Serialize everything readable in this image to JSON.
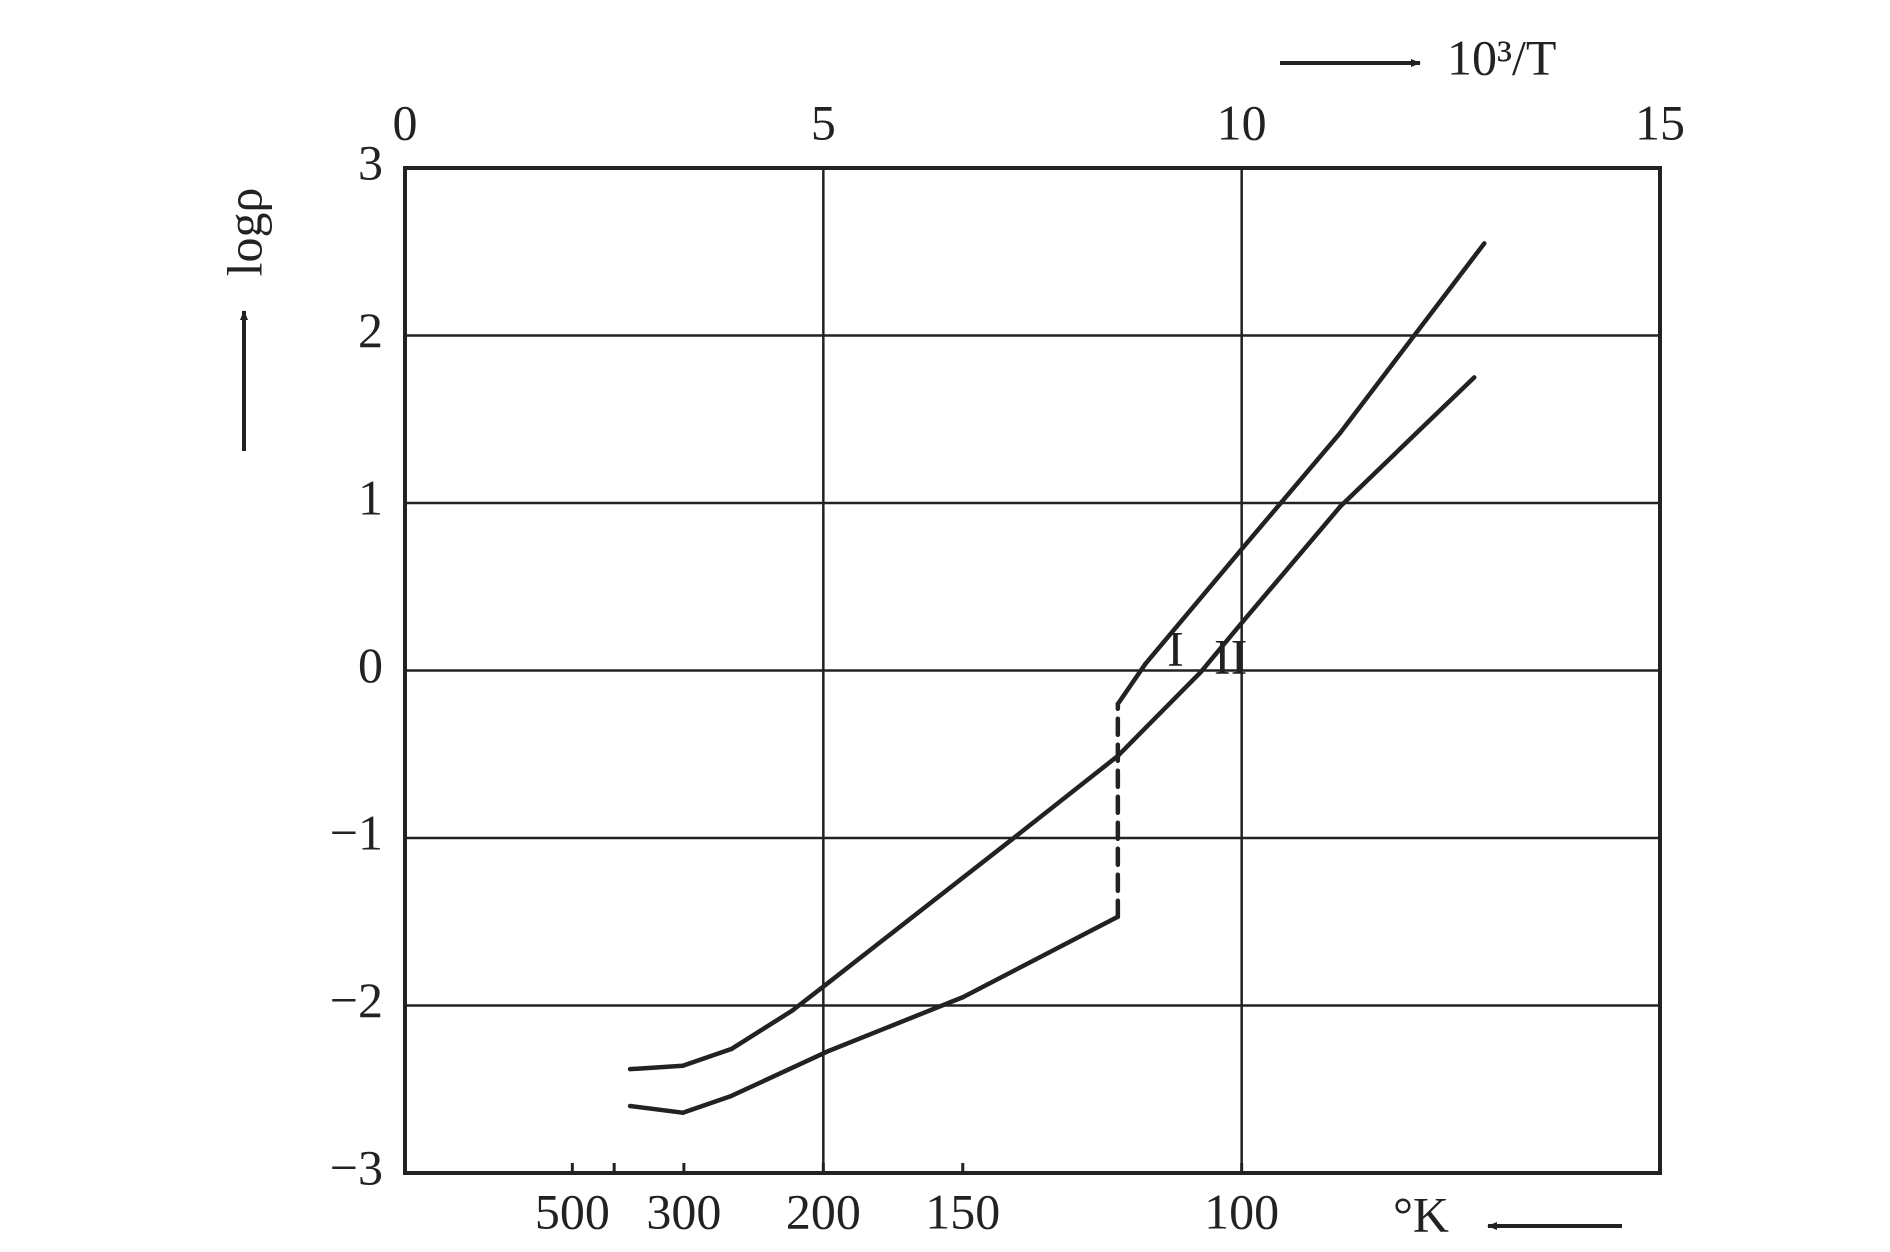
{
  "chart_data": {
    "type": "line",
    "xlabel": "10³/T",
    "ylabel": "logρ",
    "x2label": "°K",
    "xlim": [
      0,
      15
    ],
    "xticks": [
      0,
      5,
      10,
      15
    ],
    "ylim": [
      -3,
      3
    ],
    "yticks": [
      3,
      2,
      1,
      0,
      {
        "value": -1,
        "label": "−1"
      },
      {
        "value": -2,
        "label": "−2"
      },
      {
        "value": -3,
        "label": "−3"
      }
    ],
    "x2ticks": [
      500,
      300,
      200,
      150,
      100
    ],
    "x2minor": [
      400
    ],
    "grid": true,
    "color": "#222222",
    "series": [
      {
        "name": "I",
        "color": "#222222",
        "x": [
          2.69,
          3.32,
          3.9,
          5.07,
          6.67,
          8.52,
          8.52,
          8.85,
          10.01,
          11.18,
          12.9
        ],
        "values": [
          -2.6,
          -2.64,
          -2.54,
          -2.27,
          -1.95,
          -1.47,
          -0.2,
          0.04,
          0.73,
          1.42,
          2.55
        ],
        "dashed": [
          5
        ]
      },
      {
        "name": "II",
        "color": "#222222",
        "x": [
          2.69,
          3.32,
          3.9,
          4.63,
          5.07,
          7.25,
          8.52,
          9.51,
          10.01,
          11.18,
          12.78
        ],
        "values": [
          -2.38,
          -2.36,
          -2.26,
          -2.03,
          -1.86,
          -1.01,
          -0.51,
          -0.01,
          0.29,
          0.98,
          1.75
        ],
        "dashed": []
      }
    ]
  }
}
